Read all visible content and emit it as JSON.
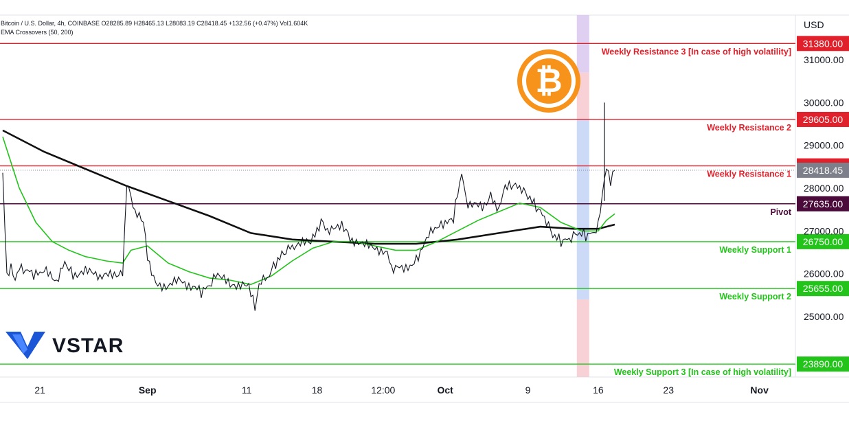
{
  "header": {
    "symbol_line": "Bitcoin / U.S. Dollar, 4h, COINBASE  O28285.89  H28465.13  L28083.19  C28418.45  +132.56 (+0.47%)  Vol1.604K",
    "indicator_line": "EMA Crossovers (50, 200)"
  },
  "price_axis": {
    "currency": "USD"
  },
  "branding": {
    "logo_text": "VSTAR",
    "logo_icon": "vstar-v-icon",
    "coin_icon": "bitcoin-icon"
  },
  "colors": {
    "resistance": "#e0202a",
    "support": "#22c41a",
    "pivot": "#4a0a3a",
    "ema50": "#22c41a",
    "ema200": "#111111",
    "candle": "#131722",
    "current_price": "#7d808a",
    "bitcoin": "#f7931a"
  },
  "chart_data": {
    "type": "line",
    "title": "Bitcoin / U.S. Dollar, 4h, COINBASE",
    "ylabel": "USD",
    "ylim": [
      23700,
      31800
    ],
    "x_tick_labels": [
      "21",
      "Sep",
      "11",
      "18",
      "12:00",
      "Oct",
      "9",
      "16",
      "23",
      "Nov"
    ],
    "y_tick_labels": [
      "25000.00",
      "26000.00",
      "27000.00",
      "28000.00",
      "29000.00",
      "30000.00",
      "31000.00"
    ],
    "y_ticks": [
      25000,
      26000,
      27000,
      28000,
      29000,
      30000,
      31000
    ],
    "ohlc": {
      "open": 28285.89,
      "high": 28465.13,
      "low": 28083.19,
      "close": 28418.45,
      "change": "+132.56 (+0.47%)",
      "volume": "1.604K"
    },
    "current_price": {
      "value": 28418.45,
      "label": "28418.45"
    },
    "levels": [
      {
        "name": "Weekly Resistance 3 [In case of high volatility]",
        "value": 31380,
        "label": "31380.00",
        "kind": "resistance"
      },
      {
        "name": "Weekly Resistance 2",
        "value": 29605,
        "label": "29605.00",
        "kind": "resistance"
      },
      {
        "name": "Weekly Resistance 1",
        "value": 28520,
        "label": "28520.00",
        "kind": "resistance"
      },
      {
        "name": "Pivot",
        "value": 27635,
        "label": "27635.00",
        "kind": "pivot"
      },
      {
        "name": "Weekly Support 1",
        "value": 26750,
        "label": "26750.00",
        "kind": "support"
      },
      {
        "name": "Weekly Support 2",
        "value": 25655,
        "label": "25655.00",
        "kind": "support"
      },
      {
        "name": "Weekly Support 3 [In case of high volatility]",
        "value": 23890,
        "label": "23890.00",
        "kind": "support"
      }
    ],
    "x_index_range": [
      0,
      192
    ],
    "x_ticks": [
      {
        "label": "21",
        "idx": 9
      },
      {
        "label": "Sep",
        "idx": 35
      },
      {
        "label": "11",
        "idx": 59
      },
      {
        "label": "18",
        "idx": 76
      },
      {
        "label": "12:00",
        "idx": 92
      },
      {
        "label": "Oct",
        "idx": 107
      },
      {
        "label": "9",
        "idx": 127
      },
      {
        "label": "16",
        "idx": 144
      },
      {
        "label": "23",
        "idx": 161
      },
      {
        "label": "Nov",
        "idx": 183
      }
    ],
    "highlight_week": {
      "idx_start": 138,
      "idx_end": 141
    },
    "price_path": [
      [
        0,
        28300
      ],
      [
        1,
        26000
      ],
      [
        2,
        26100
      ],
      [
        3,
        25900
      ],
      [
        4,
        26100
      ],
      [
        6,
        26050
      ],
      [
        8,
        25950
      ],
      [
        10,
        26050
      ],
      [
        13,
        25850
      ],
      [
        15,
        26300
      ],
      [
        17,
        26000
      ],
      [
        20,
        26050
      ],
      [
        24,
        25900
      ],
      [
        27,
        26000
      ],
      [
        29,
        26050
      ],
      [
        30,
        28100
      ],
      [
        32,
        27400
      ],
      [
        34,
        27200
      ],
      [
        35,
        26400
      ],
      [
        37,
        25800
      ],
      [
        40,
        25700
      ],
      [
        43,
        25850
      ],
      [
        46,
        25700
      ],
      [
        48,
        25550
      ],
      [
        50,
        25700
      ],
      [
        52,
        26000
      ],
      [
        55,
        25700
      ],
      [
        58,
        25800
      ],
      [
        60,
        25600
      ],
      [
        61,
        25150
      ],
      [
        62,
        25800
      ],
      [
        64,
        25900
      ],
      [
        66,
        26250
      ],
      [
        68,
        26500
      ],
      [
        70,
        26650
      ],
      [
        73,
        26700
      ],
      [
        75,
        26800
      ],
      [
        77,
        27200
      ],
      [
        79,
        26950
      ],
      [
        82,
        27200
      ],
      [
        84,
        26850
      ],
      [
        87,
        26650
      ],
      [
        90,
        26650
      ],
      [
        93,
        26450
      ],
      [
        94,
        26150
      ],
      [
        96,
        26200
      ],
      [
        99,
        26150
      ],
      [
        101,
        26450
      ],
      [
        103,
        26900
      ],
      [
        105,
        27050
      ],
      [
        107,
        27150
      ],
      [
        109,
        27250
      ],
      [
        110,
        27900
      ],
      [
        111,
        28350
      ],
      [
        112,
        27750
      ],
      [
        113,
        27600
      ],
      [
        116,
        27550
      ],
      [
        118,
        27850
      ],
      [
        120,
        27500
      ],
      [
        121,
        27950
      ],
      [
        123,
        28050
      ],
      [
        125,
        28000
      ],
      [
        127,
        27800
      ],
      [
        129,
        27550
      ],
      [
        131,
        27300
      ],
      [
        133,
        26900
      ],
      [
        135,
        26750
      ],
      [
        137,
        26800
      ],
      [
        139,
        26950
      ],
      [
        141,
        26900
      ],
      [
        143,
        26950
      ],
      [
        144,
        27100
      ],
      [
        145,
        27900
      ],
      [
        146,
        28450
      ],
      [
        147,
        28200
      ],
      [
        148,
        28418.45
      ]
    ],
    "ema_200": [
      [
        0,
        29350
      ],
      [
        10,
        28850
      ],
      [
        20,
        28450
      ],
      [
        30,
        28050
      ],
      [
        40,
        27700
      ],
      [
        50,
        27350
      ],
      [
        60,
        26950
      ],
      [
        70,
        26800
      ],
      [
        80,
        26750
      ],
      [
        90,
        26700
      ],
      [
        100,
        26700
      ],
      [
        110,
        26800
      ],
      [
        120,
        26950
      ],
      [
        130,
        27100
      ],
      [
        138,
        27050
      ],
      [
        144,
        27050
      ],
      [
        148,
        27150
      ]
    ],
    "ema_50": [
      [
        0,
        29200
      ],
      [
        4,
        28000
      ],
      [
        8,
        27200
      ],
      [
        12,
        26750
      ],
      [
        16,
        26550
      ],
      [
        20,
        26400
      ],
      [
        25,
        26300
      ],
      [
        29,
        26250
      ],
      [
        31,
        26550
      ],
      [
        35,
        26650
      ],
      [
        40,
        26250
      ],
      [
        45,
        26050
      ],
      [
        50,
        25900
      ],
      [
        55,
        25850
      ],
      [
        60,
        25750
      ],
      [
        65,
        25950
      ],
      [
        70,
        26300
      ],
      [
        75,
        26600
      ],
      [
        80,
        26750
      ],
      [
        85,
        26750
      ],
      [
        90,
        26650
      ],
      [
        95,
        26550
      ],
      [
        100,
        26550
      ],
      [
        105,
        26750
      ],
      [
        110,
        27000
      ],
      [
        115,
        27250
      ],
      [
        120,
        27450
      ],
      [
        125,
        27650
      ],
      [
        130,
        27550
      ],
      [
        135,
        27200
      ],
      [
        140,
        27000
      ],
      [
        144,
        27000
      ],
      [
        146,
        27250
      ],
      [
        148,
        27400
      ]
    ]
  }
}
